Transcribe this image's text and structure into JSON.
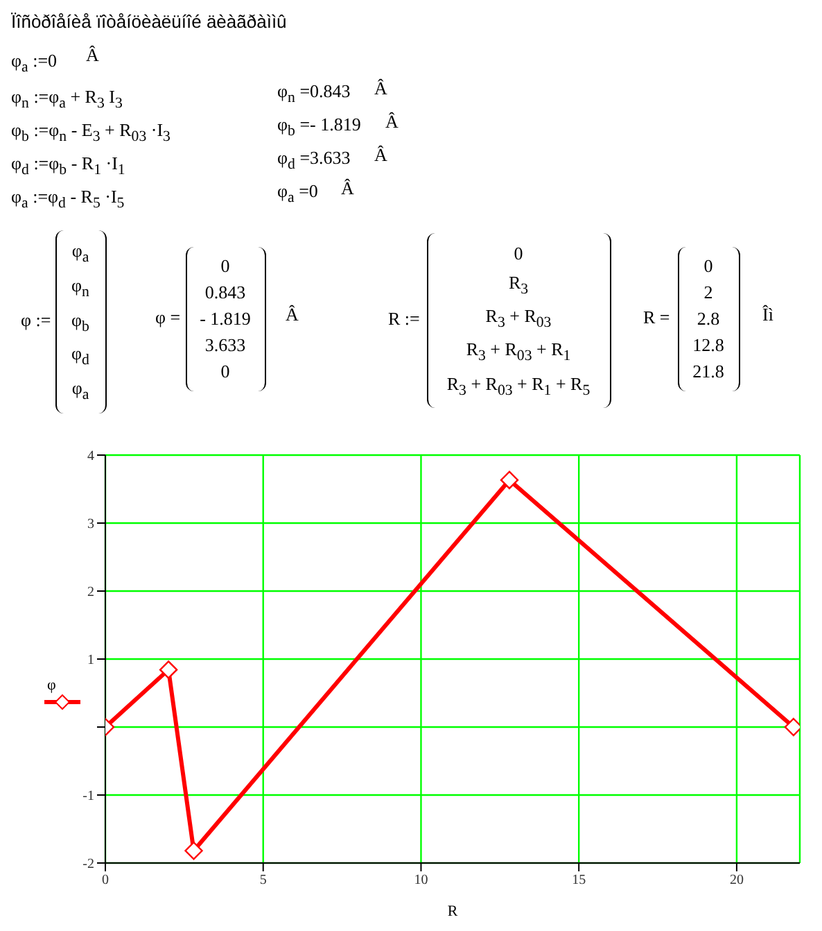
{
  "chart_data": {
    "type": "line",
    "title": "Ïîñòðîåíèå ïîòåíöèàëüíîé äèàãðàììû",
    "xlabel": "R",
    "annotations": [
      "φ$_{a}$ :=0",
      "Â",
      "φ$_{n}$ :=φ$_{a}$ + R$_{3}$ I$_{3}$",
      "φ$_{b}$ :=φ$_{n}$ -  E$_{3}$ + R$_{03}$ ·I$_{3}$",
      "φ$_{d}$ :=φ$_{b}$ -  R$_{1}$ ·I$_{1}$",
      "φ$_{a}$ :=φ$_{d}$ -  R$_{5}$ ·I$_{5}$",
      "φ$_{n}$ =0.843",
      "Â",
      "φ$_{b}$ =- 1.819",
      "Â",
      "φ$_{d}$ =3.633",
      "Â",
      "φ$_{a}$ =0",
      "Â",
      "φ :=",
      "φ$_{a}$",
      "φ$_{n}$",
      "φ$_{b}$",
      "φ$_{d}$",
      "φ$_{a}$",
      "φ =",
      "0",
      "0.843",
      "- 1.819",
      "3.633",
      "0",
      "Â",
      "R :=",
      "0",
      "R$_{3}$",
      "R$_{3}$ + R$_{03}$",
      "R$_{3}$ + R$_{03}$ + R$_{1}$",
      "R$_{3}$ + R$_{03}$ + R$_{1}$ + R$_{5}$",
      "R =",
      "0",
      "2",
      "2.8",
      "12.8",
      "21.8",
      "Îì"
    ],
    "x": [
      0,
      2,
      2.8,
      12.8,
      21.8
    ],
    "series": [
      {
        "name": "φ",
        "color": "#ff0000",
        "values": [
          0,
          0.843,
          -1.819,
          3.633,
          0
        ]
      }
    ],
    "xlim": [
      0,
      22
    ],
    "xticks": [
      0,
      5,
      10,
      15,
      20
    ],
    "ylim": [
      -2,
      4
    ],
    "yticks": [
      -2,
      -1,
      {
        "value": 0,
        "label": null
      },
      1,
      2,
      3,
      4
    ],
    "grid": true,
    "legend": "left",
    "marker": "diamond",
    "line_style": "solid"
  }
}
